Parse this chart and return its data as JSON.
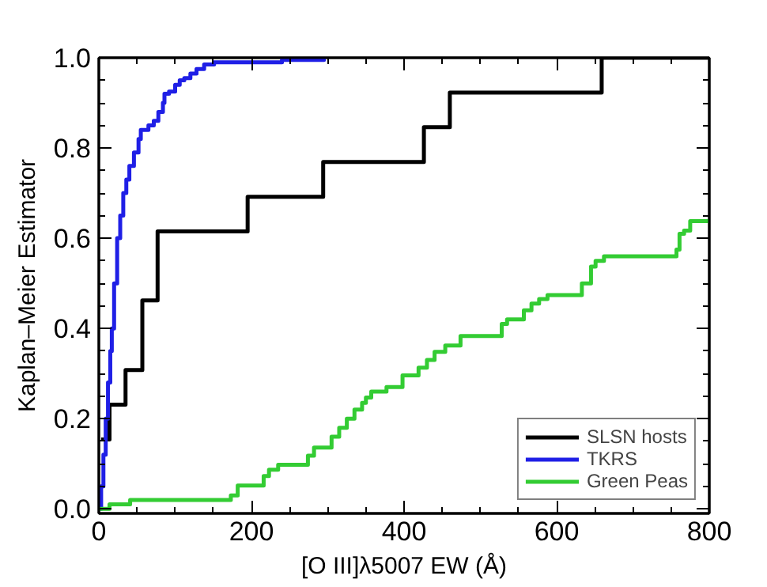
{
  "chart_data": {
    "type": "step",
    "xlabel": "[O III]λ5007 EW (Å)",
    "ylabel": "Kaplan–Meier Estimator",
    "xlim": [
      0,
      800
    ],
    "ylim": [
      -0.01,
      1.0
    ],
    "xticks": [
      0,
      200,
      400,
      600,
      800
    ],
    "yticks": [
      {
        "value": 0,
        "label": "0.0"
      },
      {
        "value": 0.2,
        "label": "0.2"
      },
      {
        "value": 0.4,
        "label": "0.4"
      },
      {
        "value": 0.6,
        "label": "0.6"
      },
      {
        "value": 0.8,
        "label": "0.8"
      },
      {
        "value": 1,
        "label": "1.0"
      }
    ],
    "grid": false,
    "legend": "bottom right",
    "series": [
      {
        "name": "SLSN hosts",
        "color": "#000000",
        "x": [
          3,
          14,
          35,
          57,
          77,
          195,
          294,
          426,
          460,
          659,
          800
        ],
        "values": [
          0.154,
          0.231,
          0.308,
          0.462,
          0.615,
          0.692,
          0.769,
          0.846,
          0.923,
          1.0,
          1.0
        ]
      },
      {
        "name": "TKRS",
        "color": "#1f1fe6",
        "x": [
          0,
          3,
          6,
          9,
          12,
          15,
          17,
          20,
          24,
          28,
          32,
          36,
          40,
          46,
          52,
          55,
          65,
          72,
          78,
          84,
          86,
          92,
          100,
          106,
          112,
          120,
          128,
          138,
          151,
          200,
          240,
          289,
          295
        ],
        "values": [
          0.0,
          0.05,
          0.12,
          0.2,
          0.28,
          0.35,
          0.4,
          0.5,
          0.6,
          0.65,
          0.7,
          0.73,
          0.76,
          0.79,
          0.82,
          0.84,
          0.85,
          0.86,
          0.88,
          0.9,
          0.92,
          0.925,
          0.94,
          0.95,
          0.955,
          0.965,
          0.975,
          0.985,
          0.99,
          0.99,
          0.995,
          0.995,
          1.0
        ]
      },
      {
        "name": "Green Peas",
        "color": "#33cc33",
        "x": [
          0,
          14,
          41,
          173,
          182,
          216,
          223,
          235,
          274,
          282,
          305,
          315,
          325,
          335,
          345,
          350,
          357,
          377,
          398,
          419,
          430,
          440,
          454,
          474,
          528,
          535,
          557,
          567,
          577,
          588,
          633,
          645,
          651,
          662,
          674,
          757,
          761,
          767,
          775,
          800
        ],
        "values": [
          0.0,
          0.01,
          0.02,
          0.03,
          0.052,
          0.073,
          0.087,
          0.098,
          0.118,
          0.136,
          0.16,
          0.18,
          0.2,
          0.22,
          0.235,
          0.247,
          0.26,
          0.27,
          0.296,
          0.313,
          0.33,
          0.348,
          0.362,
          0.383,
          0.41,
          0.42,
          0.44,
          0.455,
          0.465,
          0.474,
          0.5,
          0.537,
          0.55,
          0.56,
          0.56,
          0.575,
          0.61,
          0.617,
          0.638,
          0.638
        ]
      }
    ]
  }
}
